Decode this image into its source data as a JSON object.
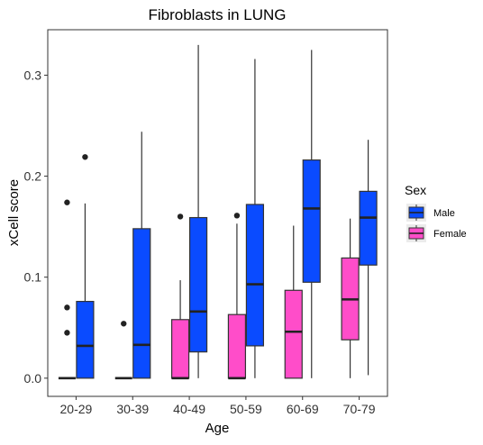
{
  "chart_data": {
    "type": "boxplot",
    "title": "Fibroblasts in LUNG",
    "xlabel": "Age",
    "ylabel": "xCell score",
    "ylim": [
      -0.018,
      0.345
    ],
    "yticks": [
      0.0,
      0.1,
      0.2,
      0.3
    ],
    "ytick_labels": [
      "0.0",
      "0.1",
      "0.2",
      "0.3"
    ],
    "categories": [
      "20-29",
      "30-39",
      "40-49",
      "50-59",
      "60-69",
      "70-79"
    ],
    "grid": false,
    "legend": {
      "title": "Sex",
      "placement": "right",
      "entries": [
        "Male",
        "Female"
      ]
    },
    "series": [
      {
        "name": "Male",
        "color": "#0A4BFF",
        "boxes": [
          {
            "category": "20-29",
            "min": 0.0,
            "q1": 0.0,
            "median": 0.032,
            "q3": 0.076,
            "max": 0.173,
            "outliers": [
              0.219
            ]
          },
          {
            "category": "30-39",
            "min": 0.0,
            "q1": 0.0,
            "median": 0.033,
            "q3": 0.148,
            "max": 0.244,
            "outliers": []
          },
          {
            "category": "40-49",
            "min": 0.0,
            "q1": 0.026,
            "median": 0.066,
            "q3": 0.159,
            "max": 0.33,
            "outliers": []
          },
          {
            "category": "50-59",
            "min": 0.0,
            "q1": 0.032,
            "median": 0.093,
            "q3": 0.172,
            "max": 0.316,
            "outliers": []
          },
          {
            "category": "60-69",
            "min": 0.0,
            "q1": 0.095,
            "median": 0.168,
            "q3": 0.216,
            "max": 0.325,
            "outliers": []
          },
          {
            "category": "70-79",
            "min": 0.003,
            "q1": 0.112,
            "median": 0.159,
            "q3": 0.185,
            "max": 0.236,
            "outliers": []
          }
        ]
      },
      {
        "name": "Female",
        "color": "#FF4DC9",
        "boxes": [
          {
            "category": "20-29",
            "min": 0.0,
            "q1": 0.0,
            "median": 0.0,
            "q3": 0.0,
            "max": 0.0,
            "outliers": [
              0.174,
              0.07,
              0.045
            ]
          },
          {
            "category": "30-39",
            "min": 0.0,
            "q1": 0.0,
            "median": 0.0,
            "q3": 0.0,
            "max": 0.0,
            "outliers": [
              0.054
            ]
          },
          {
            "category": "40-49",
            "min": 0.0,
            "q1": 0.0,
            "median": 0.0,
            "q3": 0.058,
            "max": 0.097,
            "outliers": [
              0.16
            ]
          },
          {
            "category": "50-59",
            "min": 0.0,
            "q1": 0.0,
            "median": 0.0,
            "q3": 0.063,
            "max": 0.153,
            "outliers": [
              0.161
            ]
          },
          {
            "category": "60-69",
            "min": 0.0,
            "q1": 0.0,
            "median": 0.046,
            "q3": 0.087,
            "max": 0.151,
            "outliers": []
          },
          {
            "category": "70-79",
            "min": 0.0,
            "q1": 0.038,
            "median": 0.078,
            "q3": 0.119,
            "max": 0.158,
            "outliers": []
          }
        ]
      }
    ]
  }
}
